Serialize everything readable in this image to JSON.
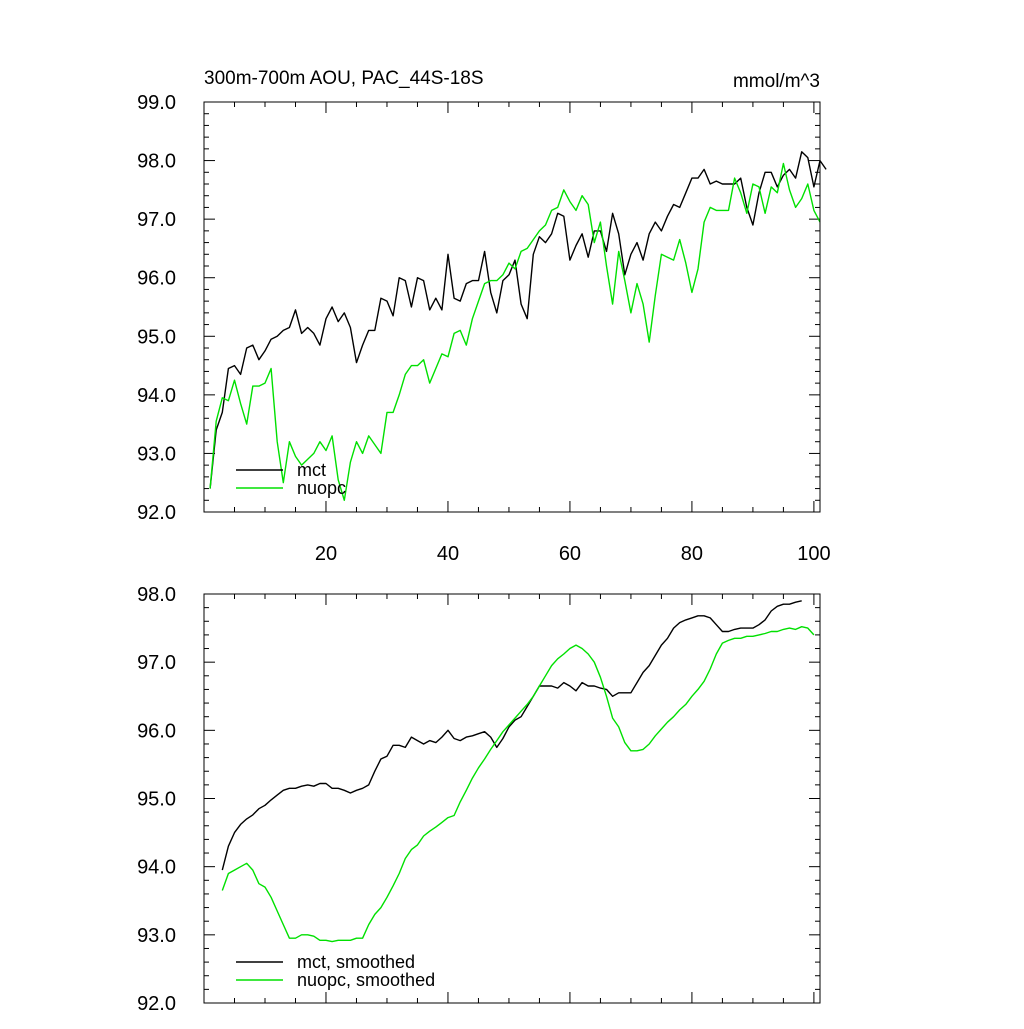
{
  "colors": {
    "mct": "#000000",
    "nuopc": "#00e000",
    "axis": "#000000"
  },
  "chart_data": [
    {
      "type": "line",
      "title": "300m-700m AOU, PAC_44S-18S",
      "units": "mmol/m^3",
      "xlim": [
        0,
        101
      ],
      "ylim": [
        92.0,
        99.0
      ],
      "xticks": [
        20,
        40,
        60,
        80,
        100
      ],
      "yticks": [
        92.0,
        93.0,
        94.0,
        95.0,
        96.0,
        97.0,
        98.0,
        99.0
      ],
      "ytick_labels": [
        "92.0",
        "93.0",
        "94.0",
        "95.0",
        "96.0",
        "97.0",
        "98.0",
        "99.0"
      ],
      "grid": false,
      "legend_position": "bottom-left",
      "series": [
        {
          "name": "mct",
          "color": "#000000",
          "x_start": 1,
          "values": [
            92.4,
            93.4,
            93.7,
            94.45,
            94.5,
            94.35,
            94.8,
            94.85,
            94.6,
            94.75,
            94.95,
            95.0,
            95.1,
            95.15,
            95.45,
            95.05,
            95.15,
            95.05,
            94.85,
            95.3,
            95.5,
            95.25,
            95.4,
            95.15,
            94.55,
            94.85,
            95.1,
            95.1,
            95.65,
            95.6,
            95.35,
            96.0,
            95.95,
            95.5,
            96.0,
            95.95,
            95.45,
            95.65,
            95.45,
            96.4,
            95.65,
            95.6,
            95.9,
            95.95,
            95.95,
            96.45,
            95.75,
            95.4,
            95.95,
            96.05,
            96.3,
            95.55,
            95.3,
            96.4,
            96.7,
            96.6,
            96.75,
            97.1,
            97.05,
            96.3,
            96.55,
            96.75,
            96.35,
            96.8,
            96.8,
            96.45,
            97.1,
            96.75,
            96.05,
            96.4,
            96.6,
            96.3,
            96.75,
            96.95,
            96.8,
            97.05,
            97.25,
            97.2,
            97.45,
            97.7,
            97.7,
            97.85,
            97.6,
            97.65,
            97.6,
            97.6,
            97.6,
            97.7,
            97.2,
            96.9,
            97.45,
            97.8,
            97.8,
            97.55,
            97.75,
            97.85,
            97.7,
            98.15,
            98.05,
            97.55,
            98.0,
            97.85
          ]
        },
        {
          "name": "nuopc",
          "color": "#00e000",
          "x_start": 1,
          "values": [
            92.4,
            93.55,
            93.95,
            93.9,
            94.25,
            93.85,
            93.5,
            94.15,
            94.15,
            94.2,
            94.45,
            93.2,
            92.5,
            93.2,
            92.95,
            92.8,
            92.9,
            93.0,
            93.2,
            93.05,
            93.3,
            92.55,
            92.2,
            92.85,
            93.2,
            93.0,
            93.3,
            93.15,
            93.0,
            93.7,
            93.7,
            94.0,
            94.35,
            94.5,
            94.5,
            94.6,
            94.2,
            94.45,
            94.7,
            94.65,
            95.05,
            95.1,
            94.85,
            95.3,
            95.6,
            95.9,
            95.95,
            95.95,
            96.05,
            96.25,
            96.15,
            96.45,
            96.5,
            96.65,
            96.8,
            96.9,
            97.15,
            97.2,
            97.5,
            97.3,
            97.15,
            97.4,
            97.25,
            96.6,
            96.95,
            96.2,
            95.55,
            96.45,
            95.95,
            95.4,
            95.9,
            95.55,
            94.9,
            95.7,
            96.4,
            96.35,
            96.3,
            96.65,
            96.25,
            95.75,
            96.15,
            96.95,
            97.2,
            97.15,
            97.15,
            97.15,
            97.7,
            97.45,
            97.1,
            97.6,
            97.55,
            97.1,
            97.55,
            97.45,
            97.95,
            97.5,
            97.2,
            97.35,
            97.6,
            97.15,
            96.95
          ]
        }
      ]
    },
    {
      "type": "line",
      "xlim": [
        0,
        101
      ],
      "ylim": [
        92.0,
        98.0
      ],
      "xticks": [
        20,
        40,
        60,
        80,
        100
      ],
      "yticks": [
        92.0,
        93.0,
        94.0,
        95.0,
        96.0,
        97.0,
        98.0
      ],
      "ytick_labels": [
        "92.0",
        "93.0",
        "94.0",
        "95.0",
        "96.0",
        "97.0",
        "98.0"
      ],
      "grid": false,
      "legend_position": "bottom-left",
      "series": [
        {
          "name": "mct, smoothed",
          "color": "#000000",
          "x_start": 3,
          "values": [
            93.95,
            94.3,
            94.5,
            94.62,
            94.7,
            94.76,
            94.85,
            94.9,
            94.98,
            95.05,
            95.12,
            95.15,
            95.15,
            95.18,
            95.2,
            95.18,
            95.22,
            95.22,
            95.15,
            95.15,
            95.12,
            95.08,
            95.12,
            95.15,
            95.2,
            95.4,
            95.58,
            95.62,
            95.78,
            95.78,
            95.75,
            95.9,
            95.85,
            95.8,
            95.85,
            95.82,
            95.9,
            96.0,
            95.88,
            95.85,
            95.9,
            95.92,
            95.95,
            95.98,
            95.9,
            95.75,
            95.88,
            96.05,
            96.15,
            96.2,
            96.35,
            96.5,
            96.65,
            96.65,
            96.65,
            96.62,
            96.7,
            96.65,
            96.58,
            96.7,
            96.65,
            96.65,
            96.62,
            96.6,
            96.5,
            96.55,
            96.55,
            96.55,
            96.7,
            96.85,
            96.95,
            97.1,
            97.25,
            97.35,
            97.5,
            97.58,
            97.62,
            97.65,
            97.68,
            97.68,
            97.65,
            97.55,
            97.45,
            97.45,
            97.48,
            97.5,
            97.5,
            97.5,
            97.55,
            97.62,
            97.75,
            97.82,
            97.85,
            97.85,
            97.88,
            97.9
          ]
        },
        {
          "name": "nuopc, smoothed",
          "color": "#00e000",
          "x_start": 3,
          "values": [
            93.65,
            93.9,
            93.95,
            94.0,
            94.05,
            93.95,
            93.75,
            93.7,
            93.55,
            93.35,
            93.15,
            92.95,
            92.95,
            93.0,
            93.0,
            92.98,
            92.92,
            92.92,
            92.9,
            92.92,
            92.92,
            92.92,
            92.95,
            92.95,
            93.15,
            93.3,
            93.4,
            93.55,
            93.72,
            93.9,
            94.12,
            94.25,
            94.32,
            94.45,
            94.52,
            94.58,
            94.65,
            94.72,
            94.75,
            94.95,
            95.12,
            95.3,
            95.45,
            95.58,
            95.72,
            95.85,
            95.98,
            96.08,
            96.18,
            96.28,
            96.38,
            96.5,
            96.65,
            96.8,
            96.95,
            97.05,
            97.12,
            97.2,
            97.25,
            97.2,
            97.12,
            97.0,
            96.78,
            96.5,
            96.18,
            96.05,
            95.82,
            95.7,
            95.7,
            95.72,
            95.8,
            95.92,
            96.02,
            96.12,
            96.2,
            96.3,
            96.38,
            96.5,
            96.6,
            96.72,
            96.9,
            97.12,
            97.28,
            97.32,
            97.35,
            97.35,
            97.38,
            97.38,
            97.4,
            97.42,
            97.45,
            97.45,
            97.48,
            97.5,
            97.48,
            97.52,
            97.5,
            97.4
          ]
        }
      ]
    }
  ]
}
